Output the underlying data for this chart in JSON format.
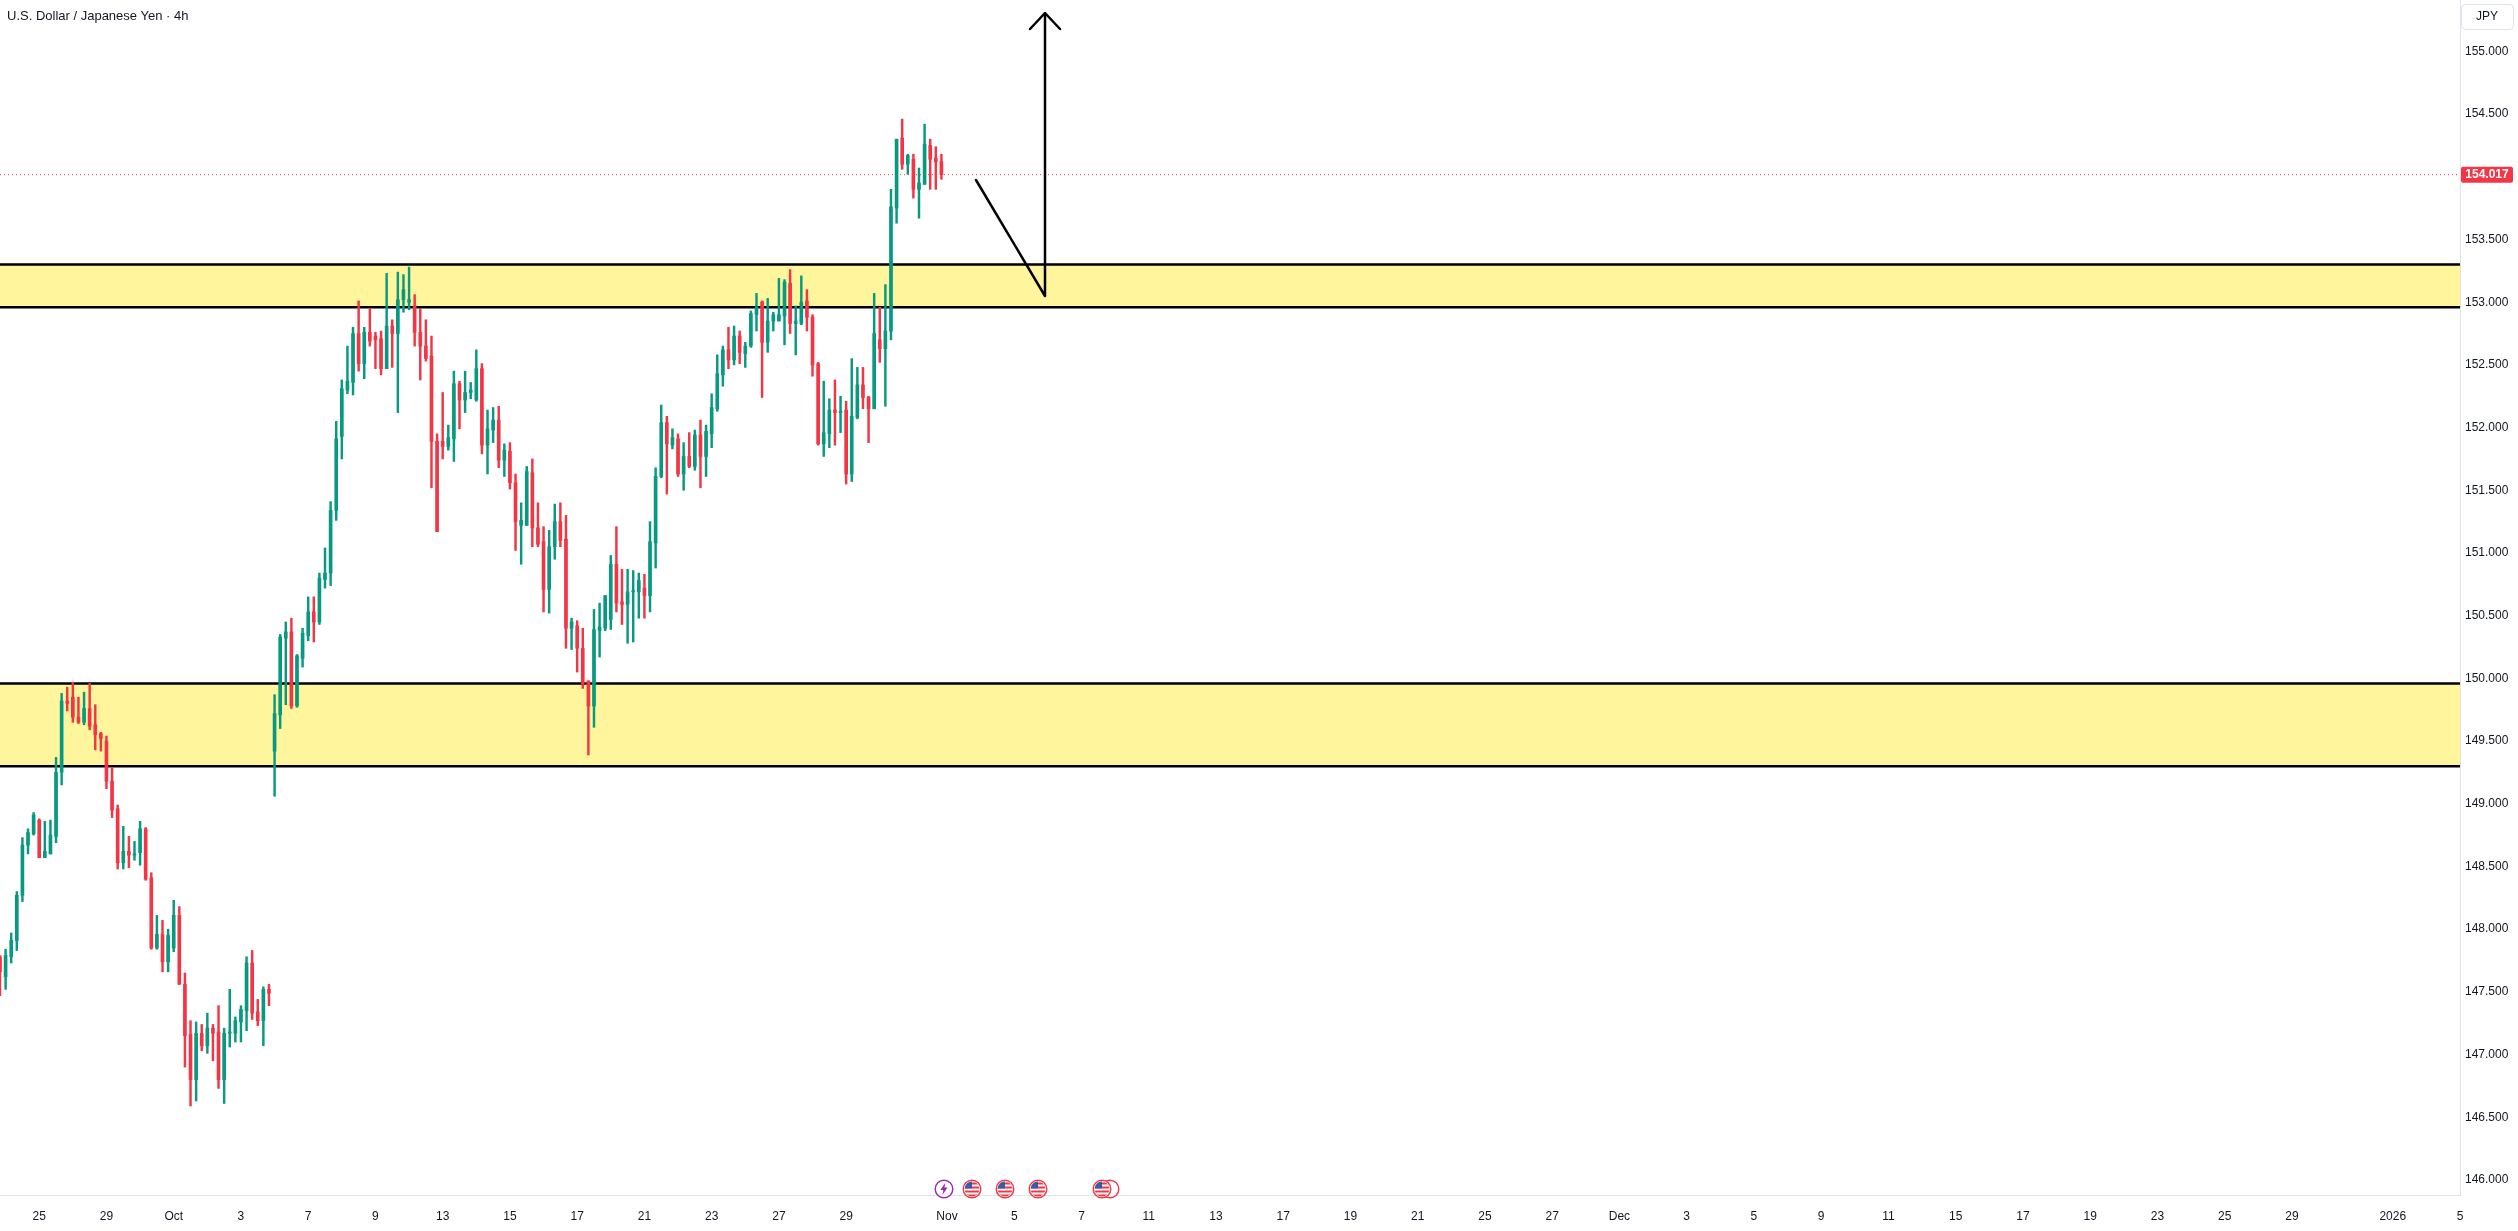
{
  "chart_data": {
    "type": "candlestick",
    "title": "U.S. Dollar / Japanese Yen · 4h",
    "ylabel": "JPY",
    "categories": [
      null,
      null,
      null,
      null,
      null,
      null,
      null,
      "25",
      null,
      null,
      null,
      null,
      null,
      null,
      null,
      null,
      null,
      null,
      null,
      "29",
      null,
      null,
      null,
      null,
      null,
      null,
      null,
      null,
      null,
      null,
      null,
      "Oct",
      null,
      null,
      null,
      null,
      null,
      null,
      null,
      null,
      null,
      null,
      null,
      "3",
      null,
      null,
      null,
      null,
      null,
      null,
      null,
      null,
      null,
      null,
      null,
      "7",
      null,
      null,
      null,
      null,
      null,
      null,
      null,
      null,
      null,
      null,
      null,
      "9",
      null,
      null,
      null,
      null,
      null,
      null,
      null,
      null,
      null,
      null,
      null,
      "13",
      null,
      null,
      null,
      null,
      null,
      null,
      null,
      null,
      null,
      null,
      null,
      "15",
      null,
      null,
      null,
      null,
      null,
      null,
      null,
      null,
      null,
      null,
      null,
      "17",
      null,
      null,
      null,
      null,
      null,
      null,
      null,
      null,
      null,
      null,
      null,
      "21",
      null,
      null,
      null,
      null,
      null,
      null,
      null,
      null,
      null,
      null,
      null,
      "23",
      null,
      null,
      null,
      null,
      null,
      null,
      null,
      null,
      null,
      null,
      null,
      "27",
      null,
      null,
      null,
      null,
      null,
      null,
      null,
      null,
      null,
      null,
      null,
      "29",
      null,
      null,
      null,
      null,
      null,
      null,
      null,
      null,
      null,
      null,
      null,
      null,
      null,
      null,
      null,
      null,
      null,
      "Nov",
      null,
      null,
      null,
      null,
      null,
      null,
      null,
      null,
      null,
      null,
      null,
      "5",
      null,
      null,
      null,
      null,
      null,
      null,
      null,
      null,
      null,
      null,
      null,
      "7",
      null,
      null,
      null,
      null,
      null,
      null,
      null,
      null,
      null,
      null,
      null,
      "11",
      null,
      null,
      null,
      null,
      null,
      null,
      null,
      null,
      null,
      null,
      null,
      "13",
      null,
      null,
      null,
      null,
      null,
      null,
      null,
      null,
      null,
      null,
      null,
      "17",
      null,
      null,
      null,
      null,
      null,
      null,
      null,
      null,
      null,
      null,
      null,
      "19",
      null,
      null,
      null,
      null,
      null,
      null,
      null,
      null,
      null,
      null,
      null,
      "21",
      null,
      null,
      null,
      null,
      null,
      null,
      null,
      null,
      null,
      null,
      null,
      "25",
      null,
      null,
      null,
      null,
      null,
      null,
      null,
      null,
      null,
      null,
      null,
      "27",
      null,
      null,
      null,
      null,
      null,
      null,
      null,
      null,
      null,
      null,
      null,
      "Dec",
      null,
      null,
      null,
      null,
      null,
      null,
      null,
      null,
      null,
      null,
      null,
      "3",
      null,
      null,
      null,
      null,
      null,
      null,
      null,
      null,
      null,
      null,
      null,
      "5",
      null,
      null,
      null,
      null,
      null,
      null,
      null,
      null,
      null,
      null,
      null,
      "9",
      null,
      null,
      null,
      null,
      null,
      null,
      null,
      null,
      null,
      null,
      null,
      "11",
      null,
      null,
      null,
      null,
      null,
      null,
      null,
      null,
      null,
      null,
      null,
      "15",
      null,
      null,
      null,
      null,
      null,
      null,
      null,
      null,
      null,
      null,
      null,
      "17",
      null,
      null,
      null,
      null,
      null,
      null,
      null,
      null,
      null,
      null,
      null,
      "19",
      null,
      null,
      null,
      null,
      null,
      null,
      null,
      null,
      null,
      null,
      null,
      "23",
      null,
      null,
      null,
      null,
      null,
      null,
      null,
      null,
      null,
      null,
      null,
      "25",
      null,
      null,
      null,
      null,
      null,
      null,
      null,
      null,
      null,
      null,
      null,
      "29",
      null,
      null,
      null,
      null,
      null,
      null,
      null,
      null,
      null,
      null,
      null,
      null,
      null,
      null,
      null,
      null,
      null,
      "2026",
      null,
      null,
      null,
      null,
      null,
      null,
      null,
      null,
      null,
      null,
      null,
      "5"
    ],
    "ohlc": [
      [
        147.78,
        147.79,
        147.47,
        147.66
      ],
      [
        147.62,
        147.84,
        147.52,
        147.79
      ],
      [
        147.78,
        147.97,
        147.73,
        147.91
      ],
      [
        147.91,
        148.3,
        147.83,
        148.27
      ],
      [
        148.27,
        148.73,
        148.22,
        148.67
      ],
      [
        148.67,
        148.8,
        148.6,
        148.77
      ],
      [
        148.76,
        148.93,
        148.75,
        148.91
      ],
      [
        148.87,
        148.88,
        148.57,
        148.57
      ],
      [
        148.57,
        148.86,
        148.57,
        148.62
      ],
      [
        148.6,
        148.87,
        148.6,
        148.75
      ],
      [
        148.74,
        149.37,
        148.69,
        149.25
      ],
      [
        149.25,
        149.88,
        149.15,
        149.82
      ],
      [
        149.82,
        149.93,
        149.74,
        149.8
      ],
      [
        149.85,
        149.97,
        149.65,
        149.69
      ],
      [
        149.69,
        149.85,
        149.64,
        149.65
      ],
      [
        149.65,
        149.89,
        149.63,
        149.76
      ],
      [
        149.76,
        149.96,
        149.59,
        149.62
      ],
      [
        149.63,
        149.79,
        149.43,
        149.55
      ],
      [
        149.56,
        149.57,
        149.42,
        149.52
      ],
      [
        149.5,
        149.54,
        149.12,
        149.18
      ],
      [
        149.18,
        149.29,
        148.89,
        148.95
      ],
      [
        148.96,
        148.99,
        148.48,
        148.53
      ],
      [
        148.53,
        148.82,
        148.48,
        148.62
      ],
      [
        148.62,
        148.74,
        148.49,
        148.59
      ],
      [
        148.59,
        148.7,
        148.55,
        148.6
      ],
      [
        148.61,
        148.86,
        148.51,
        148.8
      ],
      [
        148.8,
        148.81,
        148.39,
        148.4
      ],
      [
        148.41,
        148.45,
        147.84,
        147.85
      ],
      [
        147.85,
        148.11,
        147.84,
        147.96
      ],
      [
        147.96,
        148.07,
        147.66,
        147.74
      ],
      [
        147.74,
        148.0,
        147.66,
        147.95
      ],
      [
        147.85,
        148.23,
        147.82,
        148.11
      ],
      [
        148.11,
        148.18,
        147.56,
        147.56
      ],
      [
        147.56,
        147.65,
        146.9,
        147.15
      ],
      [
        147.16,
        147.27,
        146.59,
        146.8
      ],
      [
        146.8,
        147.26,
        146.63,
        147.17
      ],
      [
        147.17,
        147.24,
        147.03,
        147.07
      ],
      [
        147.07,
        147.33,
        147.01,
        147.21
      ],
      [
        147.21,
        147.24,
        146.95,
        147.17
      ],
      [
        147.18,
        147.39,
        146.73,
        146.8
      ],
      [
        146.8,
        147.21,
        146.61,
        147.17
      ],
      [
        147.17,
        147.52,
        147.06,
        147.18
      ],
      [
        147.17,
        147.3,
        147.1,
        147.27
      ],
      [
        147.26,
        147.39,
        147.1,
        147.36
      ],
      [
        147.35,
        147.78,
        147.19,
        147.73
      ],
      [
        147.73,
        147.83,
        147.28,
        147.33
      ],
      [
        147.34,
        147.44,
        147.23,
        147.27
      ],
      [
        147.27,
        147.54,
        147.07,
        147.52
      ],
      [
        147.52,
        147.56,
        147.39,
        147.49
      ],
      [
        149.42,
        149.87,
        149.06,
        149.72
      ],
      [
        149.71,
        150.35,
        149.6,
        150.33
      ],
      [
        150.32,
        150.45,
        149.79,
        150.37
      ],
      [
        150.37,
        150.48,
        149.76,
        149.78
      ],
      [
        149.78,
        150.19,
        149.77,
        150.18
      ],
      [
        150.16,
        150.4,
        150.09,
        150.36
      ],
      [
        150.34,
        150.65,
        150.3,
        150.53
      ],
      [
        150.53,
        150.65,
        150.29,
        150.45
      ],
      [
        150.45,
        150.84,
        150.43,
        150.8
      ],
      [
        150.79,
        151.04,
        150.72,
        150.84
      ],
      [
        150.84,
        151.41,
        150.74,
        151.34
      ],
      [
        151.34,
        152.05,
        151.26,
        151.91
      ],
      [
        151.93,
        152.38,
        151.75,
        152.31
      ],
      [
        152.3,
        152.65,
        152.27,
        152.37
      ],
      [
        152.36,
        152.8,
        152.26,
        152.75
      ],
      [
        152.75,
        153.01,
        152.45,
        152.51
      ],
      [
        152.51,
        152.8,
        152.39,
        152.76
      ],
      [
        152.76,
        152.95,
        152.65,
        152.69
      ],
      [
        152.73,
        152.76,
        152.47,
        152.7
      ],
      [
        152.71,
        152.77,
        152.42,
        152.47
      ],
      [
        152.47,
        153.23,
        152.47,
        152.81
      ],
      [
        152.81,
        152.86,
        152.48,
        152.75
      ],
      [
        152.75,
        153.24,
        152.12,
        153.02
      ],
      [
        153.02,
        153.22,
        152.92,
        153.1
      ],
      [
        153.0,
        153.28,
        152.94,
        153.02
      ],
      [
        152.97,
        153.06,
        152.65,
        152.76
      ],
      [
        152.76,
        152.95,
        152.38,
        152.65
      ],
      [
        152.65,
        152.86,
        152.53,
        152.55
      ],
      [
        152.57,
        152.73,
        151.52,
        151.89
      ],
      [
        151.89,
        151.95,
        151.17,
        151.17
      ],
      [
        151.89,
        152.28,
        151.75,
        151.85
      ],
      [
        151.85,
        152.02,
        151.82,
        151.92
      ],
      [
        151.91,
        152.45,
        151.73,
        152.35
      ],
      [
        152.35,
        152.37,
        151.99,
        152.22
      ],
      [
        152.22,
        152.45,
        152.12,
        152.28
      ],
      [
        152.28,
        152.36,
        152.23,
        152.3
      ],
      [
        152.22,
        152.62,
        152.21,
        152.47
      ],
      [
        152.47,
        152.51,
        151.79,
        151.86
      ],
      [
        151.86,
        152.14,
        151.63,
        151.99
      ],
      [
        151.98,
        152.16,
        151.88,
        152.06
      ],
      [
        152.06,
        152.17,
        151.68,
        151.74
      ],
      [
        151.74,
        151.87,
        151.61,
        151.82
      ],
      [
        151.81,
        151.88,
        151.51,
        151.56
      ],
      [
        151.56,
        151.63,
        151.02,
        151.25
      ],
      [
        151.22,
        151.4,
        150.91,
        151.26
      ],
      [
        151.22,
        151.69,
        151.22,
        151.65
      ],
      [
        151.64,
        151.75,
        151.05,
        151.2
      ],
      [
        151.2,
        151.4,
        151.05,
        151.07
      ],
      [
        151.09,
        151.21,
        150.53,
        150.71
      ],
      [
        150.71,
        151.18,
        150.52,
        151.05
      ],
      [
        151.05,
        151.39,
        150.95,
        151.25
      ],
      [
        151.25,
        151.4,
        151.05,
        151.1
      ],
      [
        151.11,
        151.3,
        150.24,
        150.4
      ],
      [
        150.4,
        150.48,
        150.23,
        150.45
      ],
      [
        150.42,
        150.46,
        150.05,
        150.24
      ],
      [
        150.24,
        150.4,
        149.92,
        149.96
      ],
      [
        149.98,
        149.98,
        149.39,
        149.78
      ],
      [
        149.78,
        150.55,
        149.61,
        150.39
      ],
      [
        150.38,
        150.6,
        150.17,
        150.41
      ],
      [
        150.4,
        150.66,
        150.38,
        150.66
      ],
      [
        150.47,
        150.98,
        150.39,
        150.91
      ],
      [
        150.91,
        151.21,
        150.53,
        150.6
      ],
      [
        150.61,
        150.87,
        150.43,
        150.59
      ],
      [
        150.59,
        150.87,
        150.28,
        150.69
      ],
      [
        150.69,
        150.86,
        150.29,
        150.7
      ],
      [
        150.69,
        150.84,
        150.48,
        150.78
      ],
      [
        150.72,
        150.83,
        150.48,
        150.66
      ],
      [
        150.66,
        151.25,
        150.53,
        151.09
      ],
      [
        151.08,
        151.68,
        150.88,
        151.61
      ],
      [
        151.61,
        152.18,
        151.6,
        152.04
      ],
      [
        152.04,
        152.09,
        151.47,
        151.87
      ],
      [
        151.86,
        151.99,
        151.83,
        151.92
      ],
      [
        151.91,
        151.95,
        151.61,
        151.63
      ],
      [
        151.63,
        151.88,
        151.5,
        151.77
      ],
      [
        151.77,
        151.96,
        151.68,
        151.69
      ],
      [
        151.69,
        151.98,
        151.66,
        151.94
      ],
      [
        151.94,
        152.06,
        151.52,
        151.77
      ],
      [
        151.77,
        152.02,
        151.61,
        151.97
      ],
      [
        151.95,
        152.27,
        151.84,
        152.16
      ],
      [
        152.15,
        152.58,
        152.13,
        152.43
      ],
      [
        152.42,
        152.65,
        152.33,
        152.62
      ],
      [
        152.62,
        152.8,
        152.47,
        152.54
      ],
      [
        152.54,
        152.81,
        152.5,
        152.73
      ],
      [
        152.73,
        152.77,
        152.51,
        152.6
      ],
      [
        152.59,
        152.68,
        152.48,
        152.65
      ],
      [
        152.65,
        152.93,
        152.64,
        152.91
      ],
      [
        152.9,
        153.07,
        152.77,
        152.96
      ],
      [
        153.0,
        153.01,
        152.24,
        152.68
      ],
      [
        152.68,
        153.03,
        152.6,
        152.85
      ],
      [
        152.85,
        152.92,
        152.77,
        152.9
      ],
      [
        152.85,
        153.19,
        152.85,
        152.9
      ],
      [
        152.89,
        153.18,
        152.66,
        153.16
      ],
      [
        153.15,
        153.26,
        152.75,
        152.83
      ],
      [
        152.83,
        152.97,
        152.58,
        152.85
      ],
      [
        152.83,
        153.21,
        152.82,
        153.0
      ],
      [
        153.01,
        153.1,
        152.77,
        152.88
      ],
      [
        152.88,
        152.9,
        152.41,
        152.5
      ],
      [
        152.51,
        152.52,
        151.86,
        151.87
      ],
      [
        151.87,
        152.37,
        151.77,
        151.96
      ],
      [
        151.95,
        152.23,
        151.84,
        152.14
      ],
      [
        152.14,
        152.38,
        151.86,
        152.12
      ],
      [
        152.12,
        152.25,
        151.96,
        152.13
      ],
      [
        152.14,
        152.21,
        151.55,
        151.63
      ],
      [
        151.63,
        152.55,
        151.57,
        152.09
      ],
      [
        152.08,
        152.48,
        152.07,
        152.34
      ],
      [
        152.34,
        152.48,
        152.15,
        152.24
      ],
      [
        152.24,
        152.25,
        151.88,
        152.15
      ],
      [
        152.15,
        153.07,
        152.15,
        152.75
      ],
      [
        152.7,
        152.96,
        152.52,
        152.63
      ],
      [
        152.63,
        153.14,
        152.17,
        152.77
      ],
      [
        152.77,
        153.9,
        152.7,
        153.76
      ],
      [
        153.75,
        154.3,
        153.63,
        154.3
      ],
      [
        154.31,
        154.46,
        154.06,
        154.1
      ],
      [
        154.1,
        154.18,
        154.02,
        154.17
      ],
      [
        154.14,
        154.18,
        153.83,
        153.9
      ],
      [
        153.9,
        154.07,
        153.67,
        153.95
      ],
      [
        153.94,
        154.42,
        153.94,
        154.26
      ],
      [
        154.25,
        154.3,
        153.9,
        154.14
      ],
      [
        154.15,
        154.24,
        153.9,
        154.12
      ],
      [
        154.12,
        154.18,
        153.98,
        154.017
      ],
      null,
      null,
      null,
      null,
      null,
      null,
      null,
      null,
      null,
      null,
      null,
      null,
      null,
      null,
      null,
      null,
      null,
      null,
      null,
      null,
      null,
      null,
      null,
      null,
      null,
      null,
      null,
      null,
      null,
      null,
      null,
      null,
      null,
      null,
      null,
      null,
      null,
      null,
      null,
      null,
      null,
      null,
      null,
      null,
      null,
      null,
      null,
      null,
      null,
      null,
      null,
      null,
      null,
      null,
      null,
      null,
      null,
      null,
      null,
      null,
      null,
      null,
      null,
      null,
      null,
      null,
      null,
      null,
      null,
      null,
      null,
      null,
      null,
      null,
      null,
      null,
      null,
      null,
      null,
      null,
      null,
      null,
      null,
      null,
      null,
      null,
      null,
      null,
      null,
      null,
      null,
      null,
      null,
      null,
      null,
      null,
      null,
      null,
      null,
      null,
      null,
      null,
      null,
      null,
      null,
      null,
      null,
      null,
      null,
      null,
      null,
      null,
      null,
      null,
      null,
      null,
      null,
      null,
      null,
      null,
      null,
      null,
      null,
      null,
      null,
      null,
      null,
      null,
      null,
      null,
      null,
      null,
      null,
      null,
      null,
      null,
      null,
      null,
      null,
      null,
      null,
      null,
      null,
      null,
      null,
      null,
      null,
      null,
      null,
      null,
      null,
      null,
      null,
      null,
      null,
      null,
      null,
      null,
      null,
      null,
      null,
      null,
      null,
      null,
      null,
      null,
      null,
      null,
      null,
      null,
      null,
      null,
      null,
      null,
      null,
      null,
      null,
      null,
      null,
      null,
      null,
      null,
      null,
      null,
      null,
      null,
      null,
      null,
      null,
      null,
      null,
      null,
      null,
      null,
      null,
      null,
      null,
      null,
      null,
      null,
      null,
      null,
      null,
      null,
      null,
      null,
      null,
      null,
      null,
      null,
      null,
      null,
      null,
      null,
      null,
      null,
      null,
      null,
      null,
      null,
      null,
      null,
      null,
      null,
      null,
      null,
      null,
      null,
      null,
      null,
      null,
      null,
      null,
      null,
      null,
      null,
      null,
      null,
      null,
      null,
      null,
      null,
      null,
      null,
      null,
      null,
      null,
      null,
      null,
      null,
      null,
      null,
      null,
      null,
      null,
      null,
      null,
      null,
      null,
      null,
      null,
      null,
      null,
      null,
      null,
      null,
      null,
      null,
      null,
      null,
      null
    ],
    "colors": [
      "#f23645",
      "#089981",
      "#089981",
      "#089981",
      "#089981",
      "#089981",
      "#089981",
      "#f23645",
      "#089981",
      "#089981",
      "#089981",
      "#089981",
      "#f23645",
      "#f23645",
      "#f23645",
      "#089981",
      "#f23645",
      "#f23645",
      "#f23645",
      "#f23645",
      "#f23645",
      "#f23645",
      "#089981",
      "#f23645",
      "#089981",
      "#089981",
      "#f23645",
      "#f23645",
      "#089981",
      "#f23645",
      "#089981",
      "#089981",
      "#f23645",
      "#f23645",
      "#f23645",
      "#089981",
      "#f23645",
      "#089981",
      "#f23645",
      "#f23645",
      "#089981",
      "#089981",
      "#089981",
      "#089981",
      "#089981",
      "#f23645",
      "#f23645",
      "#089981",
      "#f23645",
      "#089981",
      "#089981",
      "#089981",
      "#f23645",
      "#089981",
      "#089981",
      "#089981",
      "#f23645",
      "#089981",
      "#089981",
      "#089981",
      "#089981",
      "#089981",
      "#089981",
      "#089981",
      "#f23645",
      "#089981",
      "#f23645",
      "#f23645",
      "#f23645",
      "#089981",
      "#f23645",
      "#089981",
      "#089981",
      "#089981",
      "#f23645",
      "#f23645",
      "#f23645",
      "#f23645",
      "#f23645",
      "#f23645",
      "#089981",
      "#089981",
      "#f23645",
      "#089981",
      "#089981",
      "#089981",
      "#f23645",
      "#089981",
      "#089981",
      "#f23645",
      "#089981",
      "#f23645",
      "#f23645",
      "#089981",
      "#089981",
      "#f23645",
      "#f23645",
      "#f23645",
      "#089981",
      "#089981",
      "#f23645",
      "#f23645",
      "#089981",
      "#f23645",
      "#f23645",
      "#f23645",
      "#089981",
      "#089981",
      "#089981",
      "#089981",
      "#f23645",
      "#f23645",
      "#089981",
      "#089981",
      "#089981",
      "#f23645",
      "#089981",
      "#089981",
      "#089981",
      "#f23645",
      "#089981",
      "#f23645",
      "#089981",
      "#f23645",
      "#089981",
      "#f23645",
      "#089981",
      "#089981",
      "#089981",
      "#089981",
      "#f23645",
      "#089981",
      "#f23645",
      "#089981",
      "#089981",
      "#089981",
      "#f23645",
      "#089981",
      "#089981",
      "#089981",
      "#089981",
      "#f23645",
      "#089981",
      "#089981",
      "#f23645",
      "#f23645",
      "#f23645",
      "#089981",
      "#089981",
      "#f23645",
      "#089981",
      "#f23645",
      "#089981",
      "#089981",
      "#f23645",
      "#f23645",
      "#089981",
      "#f23645",
      "#089981",
      "#089981",
      "#089981",
      "#f23645",
      "#089981",
      "#f23645",
      "#089981",
      "#089981",
      "#f23645",
      "#f23645",
      "#f23645",
      null,
      null,
      null,
      null,
      null,
      null,
      null,
      null,
      null,
      null,
      null,
      null,
      null,
      null,
      null,
      null,
      null,
      null,
      null,
      null,
      null,
      null,
      null,
      null,
      null,
      null,
      null,
      null,
      null,
      null,
      null,
      null,
      null,
      null,
      null,
      null,
      null,
      null,
      null,
      null,
      null,
      null,
      null,
      null,
      null,
      null,
      null,
      null,
      null,
      null,
      null,
      null,
      null,
      null,
      null,
      null,
      null,
      null,
      null,
      null,
      null,
      null,
      null,
      null,
      null,
      null,
      null,
      null,
      null,
      null,
      null,
      null,
      null,
      null,
      null,
      null,
      null,
      null,
      null,
      null,
      null,
      null,
      null,
      null,
      null,
      null,
      null,
      null,
      null,
      null,
      null,
      null,
      null,
      null,
      null,
      null,
      null,
      null,
      null,
      null,
      null,
      null,
      null,
      null,
      null,
      null,
      null,
      null,
      null,
      null,
      null,
      null,
      null,
      null,
      null,
      null,
      null,
      null,
      null,
      null,
      null,
      null,
      null,
      null,
      null,
      null,
      null,
      null,
      null,
      null,
      null,
      null,
      null,
      null,
      null,
      null,
      null,
      null,
      null,
      null,
      null,
      null,
      null,
      null,
      null,
      null,
      null,
      null,
      null,
      null,
      null,
      null,
      null,
      null,
      null,
      null,
      null,
      null,
      null,
      null,
      null,
      null,
      null,
      null,
      null,
      null,
      null,
      null,
      null,
      null,
      null,
      null,
      null,
      null,
      null,
      null,
      null,
      null,
      null,
      null,
      null,
      null,
      null,
      null,
      null,
      null,
      null,
      null,
      null,
      null,
      null,
      null,
      null,
      null,
      null,
      null,
      null,
      null,
      null,
      null,
      null,
      null,
      null,
      null,
      null,
      null,
      null,
      null,
      null,
      null,
      null,
      null,
      null,
      null,
      null,
      null,
      null,
      null,
      null,
      null,
      null,
      null,
      null,
      null,
      null,
      null,
      null,
      null,
      null,
      null,
      null,
      null,
      null,
      null,
      null,
      null,
      null,
      null,
      null,
      null,
      null,
      null,
      null,
      null,
      null,
      null,
      null,
      null,
      null,
      null,
      null,
      null,
      null,
      null,
      null,
      null,
      null,
      null,
      null,
      null,
      null,
      null,
      null,
      null,
      null,
      null,
      null,
      null,
      null,
      null,
      null
    ],
    "ylim": [
      145.88,
      155.41
    ],
    "yticks": [
      {
        "value": 146,
        "label": "146.000"
      },
      {
        "value": 146.5,
        "label": "146.500"
      },
      {
        "value": 147,
        "label": "147.000"
      },
      {
        "value": 147.5,
        "label": "147.500"
      },
      {
        "value": 148,
        "label": "148.000"
      },
      {
        "value": 148.5,
        "label": "148.500"
      },
      {
        "value": 149,
        "label": "149.000"
      },
      {
        "value": 149.5,
        "label": "149.500"
      },
      {
        "value": 150,
        "label": "150.000"
      },
      {
        "value": 150.5,
        "label": "150.500"
      },
      {
        "value": 151,
        "label": "151.000"
      },
      {
        "value": 151.5,
        "label": "151.500"
      },
      {
        "value": 152,
        "label": "152.000"
      },
      {
        "value": 152.5,
        "label": "152.500"
      },
      {
        "value": 153,
        "label": "153.000"
      },
      {
        "value": 153.5,
        "label": "153.500"
      },
      {
        "value": 154.5,
        "label": "154.500"
      },
      {
        "value": 155,
        "label": "155.000"
      }
    ],
    "ref_lines": [
      {
        "axis": "y",
        "value": 154.017,
        "label": "154.017",
        "color": "#f23645",
        "line_style": "dotted"
      }
    ],
    "bands": [
      {
        "axis": "y",
        "from": 152.96,
        "to": 153.3,
        "color": "#fff59d"
      },
      {
        "axis": "y",
        "from": 149.3,
        "to": 149.96,
        "color": "#fff59d"
      }
    ]
  }
}
